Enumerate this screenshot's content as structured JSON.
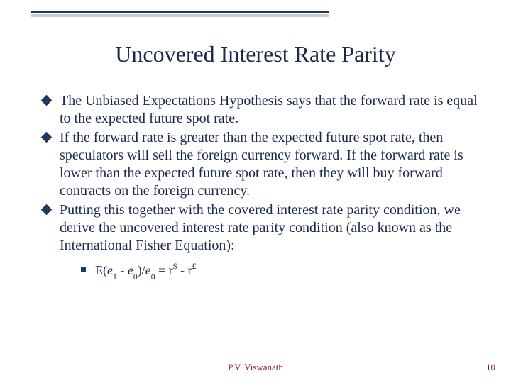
{
  "colors": {
    "text": "#1a2a4a",
    "rule": "#1f3a5f",
    "rule_shadow": "#cccccc",
    "footer": "#8a1a1a",
    "background": "#ffffff"
  },
  "typography": {
    "title_fontsize": 32,
    "bullet_fontsize": 20,
    "sub_fontsize": 18,
    "footer_fontsize": 13,
    "font_family": "Times New Roman"
  },
  "title": "Uncovered Interest Rate Parity",
  "bullets": [
    "The Unbiased Expectations Hypothesis says that the forward rate is equal to the expected future spot rate.",
    "If the forward rate is greater than the expected future spot rate, then speculators will sell the foreign currency forward. If the forward rate is lower than the expected future spot rate, then they will buy forward contracts on the foreign currency.",
    "Putting this together with the covered interest rate parity condition, we derive the uncovered interest rate parity condition (also known as the International Fisher Equation):"
  ],
  "equation": {
    "parts": {
      "E": "E(",
      "e": "e",
      "sub1": "1",
      "minus1": " - ",
      "sub0a": "0",
      "close_div": ")/",
      "sub0b": "0",
      "eq": " = r",
      "sup_dollar": "$",
      "minus2": " - r",
      "sup_pound": "£"
    }
  },
  "footer": {
    "author": "P.V. Viswanath",
    "page": "10"
  }
}
